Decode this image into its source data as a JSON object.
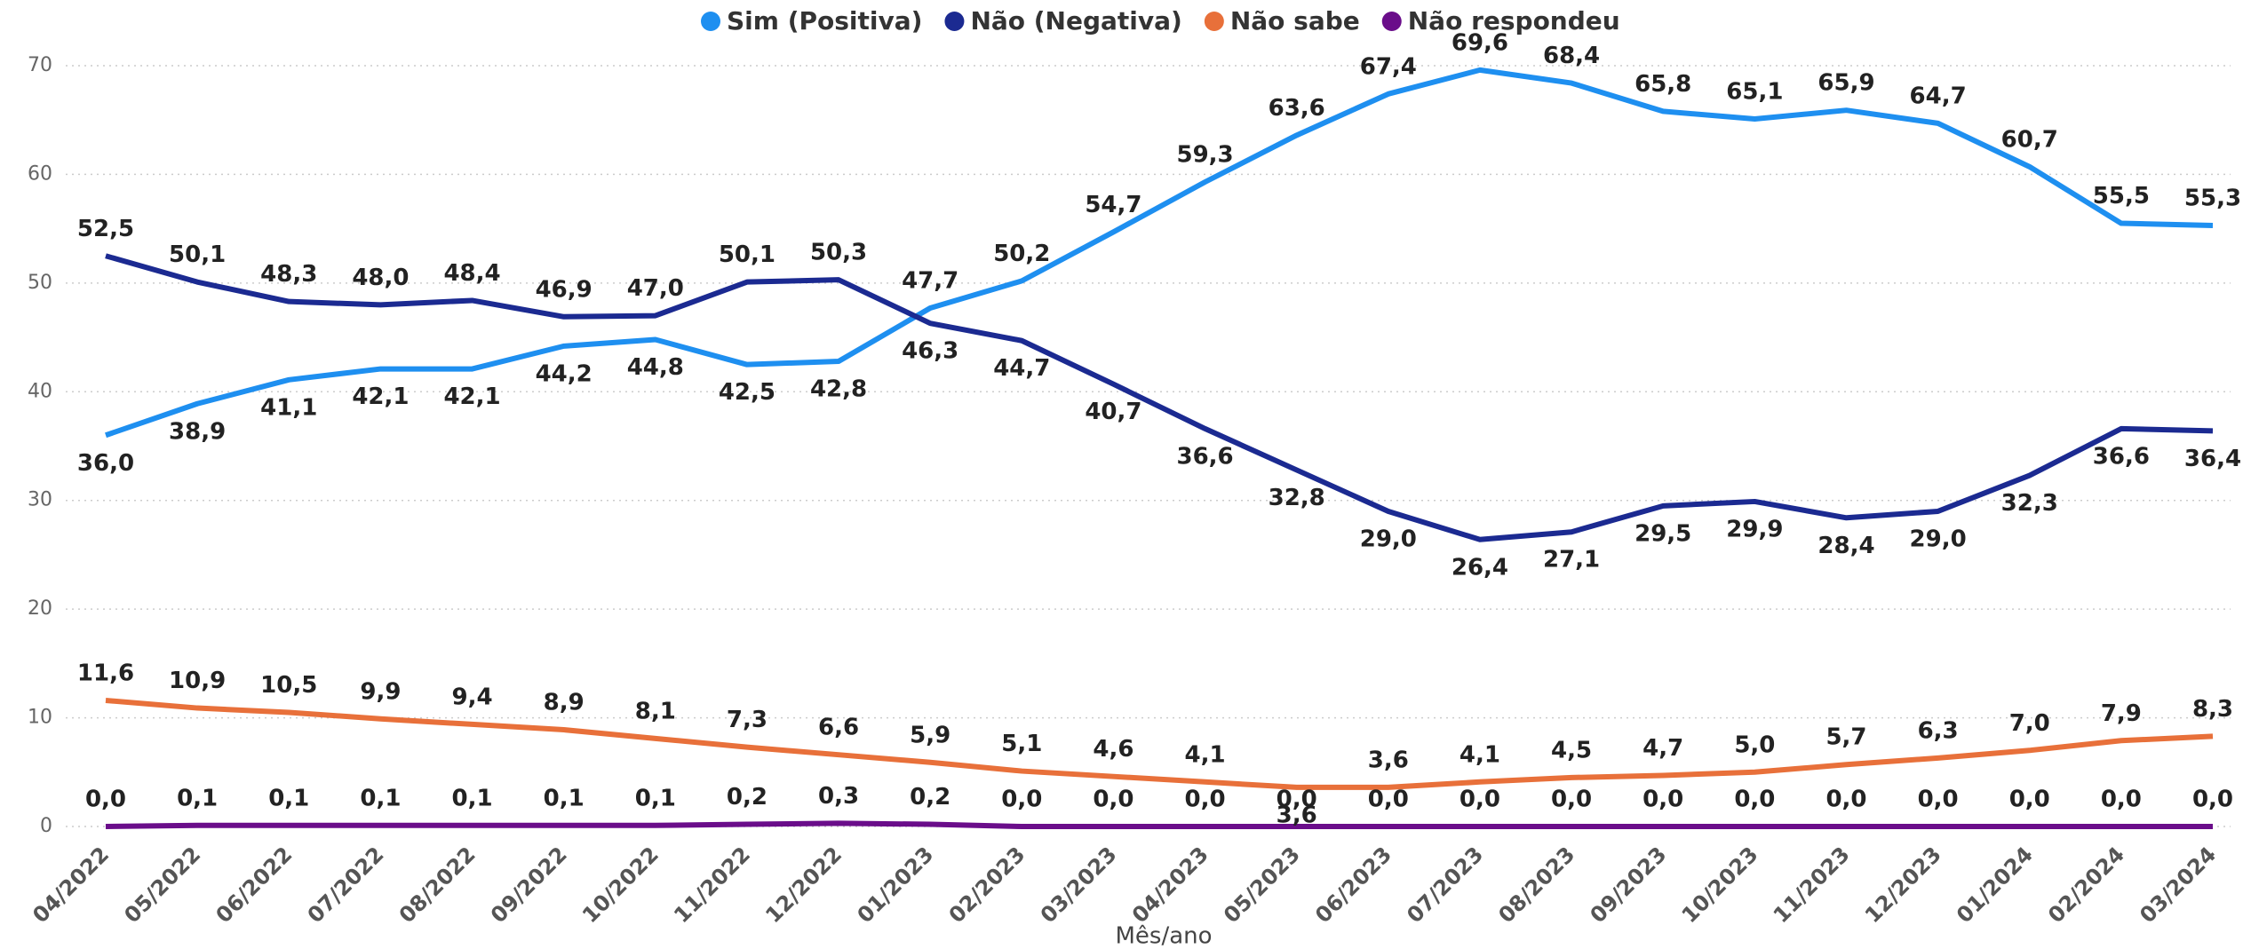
{
  "chart_data": {
    "type": "line",
    "categories": [
      "04/2022",
      "05/2022",
      "06/2022",
      "07/2022",
      "08/2022",
      "09/2022",
      "10/2022",
      "11/2022",
      "12/2022",
      "01/2023",
      "02/2023",
      "03/2023",
      "04/2023",
      "05/2023",
      "06/2023",
      "07/2023",
      "08/2023",
      "09/2023",
      "10/2023",
      "11/2023",
      "12/2023",
      "01/2024",
      "02/2024",
      "03/2024"
    ],
    "x_label": "Mês/ano",
    "ylim": [
      0,
      70
    ],
    "yticks": [
      0,
      10,
      20,
      30,
      40,
      50,
      60,
      70
    ],
    "grid": true,
    "legend": "top",
    "series": [
      {
        "name": "Sim (Positiva)",
        "color": "#1e8ff0",
        "values": [
          36.0,
          38.9,
          41.1,
          42.1,
          42.1,
          44.2,
          44.8,
          42.5,
          42.8,
          47.7,
          50.2,
          54.7,
          59.3,
          63.6,
          67.4,
          69.6,
          68.4,
          65.8,
          65.1,
          65.9,
          64.7,
          60.7,
          55.5,
          55.3
        ],
        "value_labels": [
          "36,0",
          "38,9",
          "41,1",
          "42,1",
          "42,1",
          "44,2",
          "44,8",
          "42,5",
          "42,8",
          "47,7",
          "50,2",
          "54,7",
          "59,3",
          "63,6",
          "67,4",
          "69,6",
          "68,4",
          "65,8",
          "65,1",
          "65,9",
          "64,7",
          "60,7",
          "55,5",
          "55,3"
        ]
      },
      {
        "name": "Não (Negativa)",
        "color": "#1b2a91",
        "values": [
          52.5,
          50.1,
          48.3,
          48.0,
          48.4,
          46.9,
          47.0,
          50.1,
          50.3,
          46.3,
          44.7,
          40.7,
          36.6,
          32.8,
          29.0,
          26.4,
          27.1,
          29.5,
          29.9,
          28.4,
          29.0,
          32.3,
          36.6,
          36.4
        ],
        "value_labels": [
          "52,5",
          "50,1",
          "48,3",
          "48,0",
          "48,4",
          "46,9",
          "47,0",
          "50,1",
          "50,3",
          "46,3",
          "44,7",
          "40,7",
          "36,6",
          "32,8",
          "29,0",
          "26,4",
          "27,1",
          "29,5",
          "29,9",
          "28,4",
          "29,0",
          "32,3",
          "36,6",
          "36,4"
        ]
      },
      {
        "name": "Não sabe",
        "color": "#e8703a",
        "values": [
          11.6,
          10.9,
          10.5,
          9.9,
          9.4,
          8.9,
          8.1,
          7.3,
          6.6,
          5.9,
          5.1,
          4.6,
          4.1,
          3.6,
          3.6,
          4.1,
          4.5,
          4.7,
          5.0,
          5.7,
          6.3,
          7.0,
          7.9,
          8.3
        ],
        "value_labels": [
          "11,6",
          "10,9",
          "10,5",
          "9,9",
          "9,4",
          "8,9",
          "8,1",
          "7,3",
          "6,6",
          "5,9",
          "5,1",
          "4,6",
          "4,1",
          "3,6",
          "3,6",
          "4,1",
          "4,5",
          "4,7",
          "5,0",
          "5,7",
          "6,3",
          "7,0",
          "7,9",
          "8,3"
        ]
      },
      {
        "name": "Não respondeu",
        "color": "#6a0d8a",
        "values": [
          0.0,
          0.1,
          0.1,
          0.1,
          0.1,
          0.1,
          0.1,
          0.2,
          0.3,
          0.2,
          0.0,
          0.0,
          0.0,
          0.0,
          0.0,
          0.0,
          0.0,
          0.0,
          0.0,
          0.0,
          0.0,
          0.0,
          0.0,
          0.0
        ],
        "value_labels": [
          "0,0",
          "0,1",
          "0,1",
          "0,1",
          "0,1",
          "0,1",
          "0,1",
          "0,2",
          "0,3",
          "0,2",
          "0,0",
          "0,0",
          "0,0",
          "0,0",
          "0,0",
          "0,0",
          "0,0",
          "0,0",
          "0,0",
          "0,0",
          "0,0",
          "0,0",
          "0,0",
          "0,0"
        ]
      }
    ]
  }
}
